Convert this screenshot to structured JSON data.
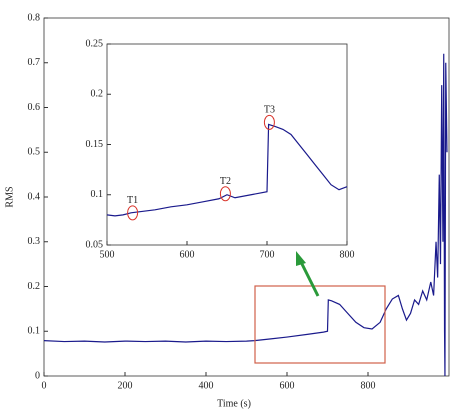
{
  "chart_data": [
    {
      "type": "line",
      "x_label": "Time (s)",
      "y_label": "RMS",
      "xlim": [
        0,
        1000
      ],
      "ylim": [
        0,
        0.8
      ],
      "xticks": [
        0,
        200,
        400,
        600,
        800
      ],
      "yticks": [
        0,
        0.1,
        0.2,
        0.3,
        0.4,
        0.5,
        0.6,
        0.7,
        0.8
      ],
      "series": [
        {
          "color": "#1a1a8c",
          "x": [
            0,
            50,
            100,
            150,
            200,
            250,
            300,
            350,
            400,
            450,
            500,
            520,
            560,
            600,
            650,
            690,
            700,
            702,
            710,
            730,
            750,
            770,
            790,
            810,
            830,
            845,
            860,
            875,
            885,
            895,
            905,
            915,
            925,
            935,
            945,
            955,
            962,
            968,
            972,
            976,
            979,
            982,
            985,
            987,
            989,
            990,
            992,
            995
          ],
          "values": [
            0.079,
            0.077,
            0.078,
            0.076,
            0.078,
            0.077,
            0.078,
            0.076,
            0.078,
            0.077,
            0.078,
            0.079,
            0.083,
            0.087,
            0.093,
            0.098,
            0.1,
            0.17,
            0.168,
            0.16,
            0.14,
            0.12,
            0.108,
            0.105,
            0.12,
            0.15,
            0.172,
            0.18,
            0.15,
            0.125,
            0.14,
            0.17,
            0.16,
            0.19,
            0.17,
            0.21,
            0.18,
            0.3,
            0.22,
            0.45,
            0.25,
            0.65,
            0.3,
            0.72,
            0.1,
            0,
            0.7,
            0.5
          ]
        }
      ]
    },
    {
      "type": "line",
      "xlim": [
        500,
        800
      ],
      "ylim": [
        0.05,
        0.25
      ],
      "xticks": [
        500,
        600,
        700,
        800
      ],
      "yticks": [
        0.05,
        0.1,
        0.15,
        0.2,
        0.25
      ],
      "series": [
        {
          "color": "#1a1a8c",
          "x": [
            500,
            510,
            520,
            530,
            540,
            560,
            580,
            600,
            620,
            640,
            650,
            660,
            680,
            700,
            702,
            710,
            720,
            730,
            740,
            750,
            760,
            770,
            780,
            790,
            800
          ],
          "values": [
            0.08,
            0.079,
            0.08,
            0.082,
            0.083,
            0.085,
            0.088,
            0.09,
            0.093,
            0.096,
            0.1,
            0.097,
            0.1,
            0.103,
            0.17,
            0.168,
            0.165,
            0.16,
            0.15,
            0.14,
            0.13,
            0.12,
            0.11,
            0.105,
            0.108
          ]
        }
      ],
      "annotations": [
        {
          "text": "T1",
          "x": 532,
          "y": 0.082
        },
        {
          "text": "T2",
          "x": 648,
          "y": 0.101
        },
        {
          "text": "T3",
          "x": 703,
          "y": 0.172
        }
      ]
    }
  ]
}
